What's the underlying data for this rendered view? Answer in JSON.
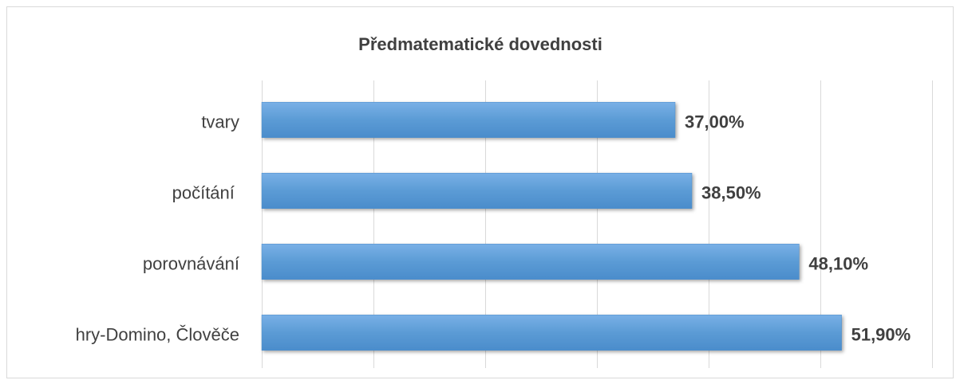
{
  "chart_data": {
    "type": "bar",
    "orientation": "horizontal",
    "title": "Předmatematické dovednosti",
    "categories": [
      "tvary",
      "počítání ",
      "porovnávání",
      "hry-Domino, Člověče"
    ],
    "values": [
      37,
      38.5,
      48.1,
      51.9
    ],
    "value_labels": [
      "37,00%",
      "38,50%",
      "48,10%",
      "51,90%"
    ],
    "color": "#5b9bd5",
    "xlim": [
      0,
      60
    ],
    "xticks": [
      0,
      10,
      20,
      30,
      40,
      50,
      60
    ],
    "grid": true
  }
}
